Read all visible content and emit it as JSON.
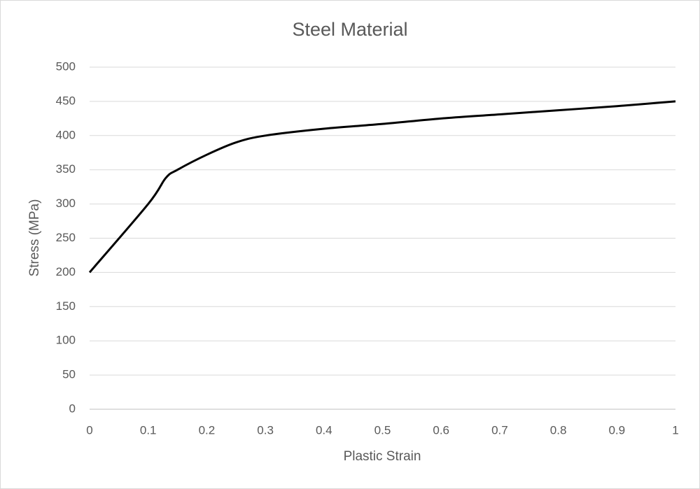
{
  "chart_data": {
    "type": "line",
    "title": "Steel Material",
    "x_label": "Plastic Strain",
    "y_label": "Stress (MPa)",
    "x": [
      0,
      0.1,
      0.13,
      0.15,
      0.2,
      0.25,
      0.3,
      0.4,
      0.5,
      0.6,
      0.7,
      0.8,
      0.9,
      1
    ],
    "values": [
      200,
      300,
      338,
      350,
      372,
      390,
      400,
      410,
      417,
      425,
      431,
      437,
      443,
      450
    ],
    "color": "#000000",
    "xlim": [
      0,
      1
    ],
    "xticks": [
      0,
      0.1,
      0.2,
      0.3,
      0.4,
      0.5,
      0.6,
      0.7,
      0.8,
      0.9,
      1
    ],
    "ylim": [
      0,
      500
    ],
    "yticks": [
      0,
      50,
      100,
      150,
      200,
      250,
      300,
      350,
      400,
      450,
      500
    ],
    "grid": true
  }
}
